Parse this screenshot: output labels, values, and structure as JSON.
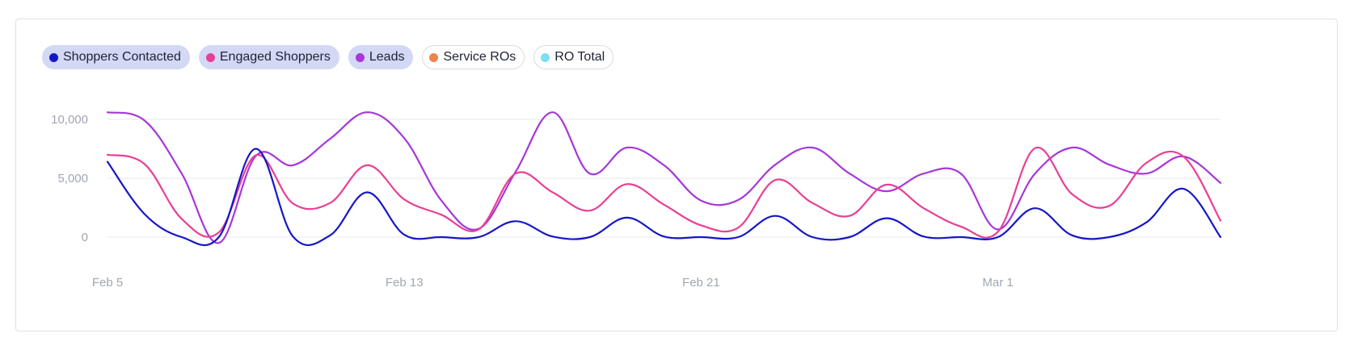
{
  "legend": [
    {
      "label": "Shoppers Contacted",
      "color": "#1616c8",
      "active": true
    },
    {
      "label": "Engaged Shoppers",
      "color": "#e83f96",
      "active": true
    },
    {
      "label": "Leads",
      "color": "#a637d8",
      "active": true
    },
    {
      "label": "Service ROs",
      "color": "#f0834a",
      "active": false
    },
    {
      "label": "RO Total",
      "color": "#7ddff0",
      "active": false
    }
  ],
  "chart_data": {
    "type": "line",
    "x": [
      "Feb 5",
      "Feb 6",
      "Feb 7",
      "Feb 8",
      "Feb 9",
      "Feb 10",
      "Feb 11",
      "Feb 12",
      "Feb 13",
      "Feb 14",
      "Feb 15",
      "Feb 16",
      "Feb 17",
      "Feb 18",
      "Feb 19",
      "Feb 20",
      "Feb 21",
      "Feb 22",
      "Feb 23",
      "Feb 24",
      "Feb 25",
      "Feb 26",
      "Feb 27",
      "Feb 28",
      "Mar 1",
      "Mar 2",
      "Mar 3",
      "Mar 4",
      "Mar 5",
      "Mar 6",
      "Mar 7"
    ],
    "x_ticks": [
      "Feb 5",
      "Feb 13",
      "Feb 21",
      "Mar 1"
    ],
    "y_ticks": [
      0,
      5000,
      10000
    ],
    "y_tick_labels": [
      "0",
      "5,000",
      "10,000"
    ],
    "ylim": [
      -2000,
      12000
    ],
    "grid": true,
    "series": [
      {
        "name": "Shoppers Contacted",
        "color": "#1616c8",
        "values": [
          6400,
          1950,
          0,
          0,
          7500,
          50,
          150,
          3800,
          200,
          0,
          0,
          1350,
          50,
          0,
          1650,
          50,
          0,
          0,
          1800,
          0,
          0,
          1600,
          50,
          0,
          0,
          2450,
          150,
          0,
          1250,
          4100,
          0
        ]
      },
      {
        "name": "Engaged Shoppers",
        "color": "#e83f96",
        "values": [
          7000,
          6200,
          1550,
          400,
          6950,
          2850,
          2900,
          6100,
          3200,
          1900,
          650,
          5400,
          3800,
          2250,
          4500,
          2750,
          1000,
          800,
          4850,
          2900,
          1800,
          4450,
          2450,
          900,
          450,
          7550,
          3650,
          2650,
          6300,
          6850,
          1400
        ]
      },
      {
        "name": "Leads",
        "color": "#a637d8",
        "values": [
          10600,
          9900,
          5400,
          -500,
          6900,
          6100,
          8350,
          10600,
          8400,
          3100,
          700,
          5550,
          10600,
          5400,
          7600,
          6100,
          3100,
          3150,
          6150,
          7600,
          5400,
          3900,
          5400,
          5400,
          650,
          5400,
          7600,
          6150,
          5400,
          6850,
          4600
        ]
      }
    ]
  }
}
